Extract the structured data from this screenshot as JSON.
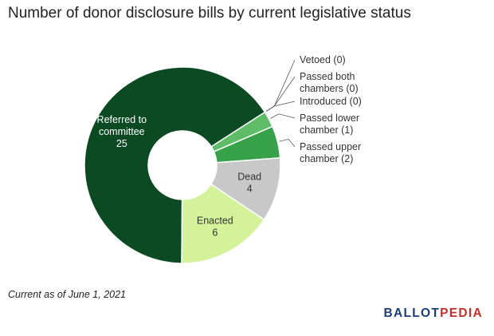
{
  "title": "Number of donor disclosure bills by current legislative status",
  "footnote": "Current as of June 1, 2021",
  "brand": {
    "part1": "BALLOT",
    "part2": "PEDIA",
    "color1": "#1d3c78",
    "color2": "#c4302b"
  },
  "chart_data": {
    "type": "pie",
    "title": "Number of donor disclosure bills by current legislative status",
    "slices": [
      {
        "label": [
          "Referred to",
          "committee"
        ],
        "value": 25,
        "color": "#0b4a23",
        "label_color": "#ffffff",
        "placement": "inside"
      },
      {
        "label": [
          "Vetoed (0)"
        ],
        "value": 0,
        "color": "#aad49a",
        "label_color": "#333333",
        "placement": "outside"
      },
      {
        "label": [
          "Passed both",
          "chambers (0)"
        ],
        "value": 0,
        "color": "#8cc77e",
        "label_color": "#333333",
        "placement": "outside"
      },
      {
        "label": [
          "Introduced (0)"
        ],
        "value": 0,
        "color": "#72ba6a",
        "label_color": "#333333",
        "placement": "outside"
      },
      {
        "label": [
          "Passed lower",
          "chamber (1)"
        ],
        "value": 1,
        "color": "#5fbd67",
        "label_color": "#333333",
        "placement": "outside"
      },
      {
        "label": [
          "Passed upper",
          "chamber (2)"
        ],
        "value": 2,
        "color": "#38a24b",
        "label_color": "#333333",
        "placement": "outside"
      },
      {
        "label": [
          "Dead"
        ],
        "value": 4,
        "color": "#c8c8c8",
        "label_color": "#333333",
        "placement": "inside"
      },
      {
        "label": [
          "Enacted"
        ],
        "value": 6,
        "color": "#d4f29a",
        "label_color": "#333333",
        "placement": "inside"
      }
    ]
  }
}
